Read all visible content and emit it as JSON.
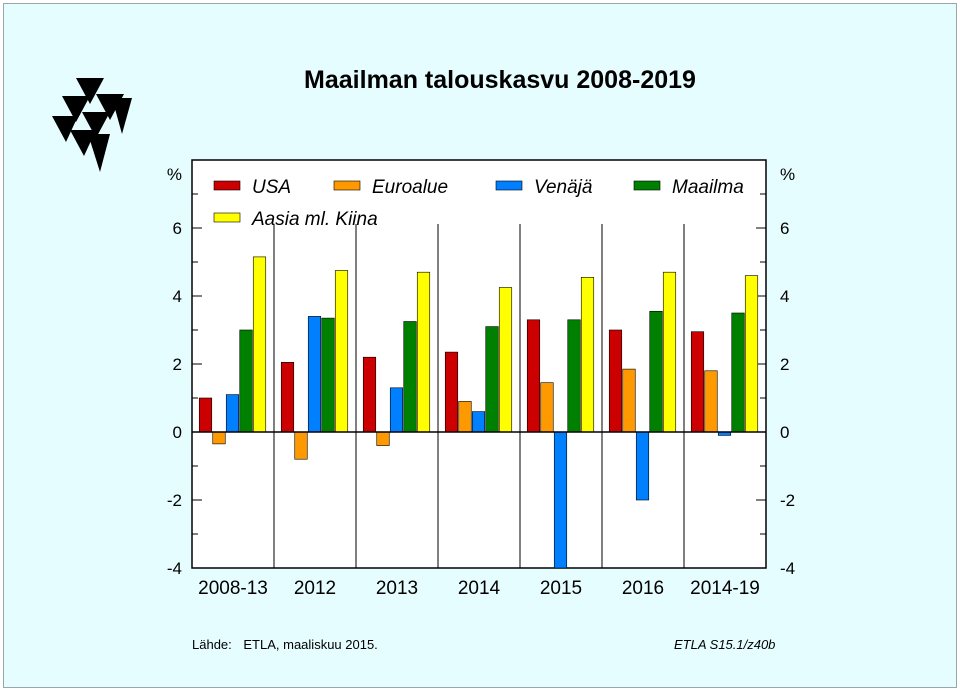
{
  "title": "Maailman talouskasvu 2008-2019",
  "source_label": "Lähde:",
  "source_text": "ETLA, maaliskuu 2015.",
  "code": "ETLA S15.1/z40b",
  "colors": {
    "background": "#e6fdff",
    "usa": "#cc0000",
    "euroalue": "#ff9900",
    "venaja": "#0080ff",
    "maailma": "#008000",
    "aasia": "#ffff00"
  },
  "chart_data": {
    "type": "bar",
    "categories": [
      "2008-13",
      "2012",
      "2013",
      "2014",
      "2015",
      "2016",
      "2014-19"
    ],
    "series": [
      {
        "name": "USA",
        "color": "#cc0000",
        "values": [
          1.0,
          2.05,
          2.2,
          2.35,
          3.3,
          3.0,
          2.95
        ]
      },
      {
        "name": "Euroalue",
        "color": "#ff9900",
        "values": [
          -0.35,
          -0.8,
          -0.4,
          0.9,
          1.45,
          1.85,
          1.8
        ]
      },
      {
        "name": "Venäjä",
        "color": "#0080ff",
        "values": [
          1.1,
          3.4,
          1.3,
          0.6,
          -4.0,
          -2.0,
          -0.1
        ]
      },
      {
        "name": "Maailma",
        "color": "#008000",
        "values": [
          3.0,
          3.35,
          3.25,
          3.1,
          3.3,
          3.55,
          3.5
        ]
      },
      {
        "name": "Aasia ml. Kiina",
        "color": "#ffff00",
        "values": [
          5.15,
          4.75,
          4.7,
          4.25,
          4.55,
          4.7,
          4.6
        ]
      }
    ],
    "ylim": [
      -4,
      8
    ],
    "yticks": [
      "-4",
      "-2",
      "0",
      "2",
      "4",
      "6"
    ],
    "ylabel_left": "%",
    "ylabel_right": "%",
    "grid": true,
    "legend": "top-inside"
  }
}
